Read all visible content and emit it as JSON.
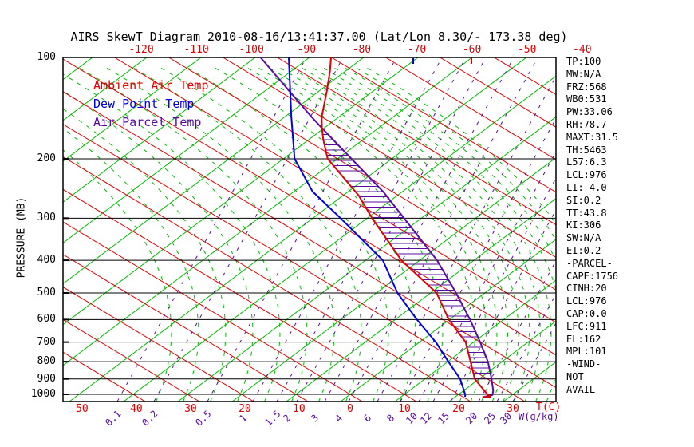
{
  "title": "AIRS SkewT Diagram 2010-08-16/13:41:37.00 (Lat/Lon 8.30/- 173.38 deg)",
  "colors": {
    "temperature": "#e00000",
    "dewpoint": "#0000e0",
    "parcel": "#5a0ca0",
    "isotherm": "#00bb00",
    "dry_adiabat": "#e00000",
    "moist_adiabat": "#00bb00",
    "mixing_ratio": "#5a0ca0",
    "axis": "#000000"
  },
  "legend": [
    {
      "label": "Ambient Air Temp",
      "color": "#e00000"
    },
    {
      "label": "Dew Point Temp",
      "color": "#0000e0"
    },
    {
      "label": "Air Parcel Temp",
      "color": "#5a0ca0"
    }
  ],
  "axes": {
    "pressure_title": "PRESSURE (MB)",
    "pressure_ticks": [
      100,
      200,
      300,
      400,
      500,
      600,
      700,
      800,
      900,
      1000
    ],
    "top_temperature_ticks": [
      -120,
      -110,
      -100,
      -90,
      -80,
      -70,
      -60,
      -50,
      -40
    ],
    "bottom_temperature_ticks": [
      -50,
      -40,
      -30,
      -20,
      -10,
      0,
      10,
      20,
      30
    ],
    "temperature_unit_label": "T(C)",
    "mixing_ratio_ticks": [
      "0.1",
      "0.2",
      "0.5",
      "1",
      "1.5",
      "2",
      "3",
      "4",
      "6",
      "8",
      "10",
      "12",
      "15",
      "20",
      "25",
      "30"
    ],
    "mixing_ratio_unit_label": "W(g/kg)"
  },
  "stats_panel": [
    "TP:100",
    "MW:N/A",
    "FRZ:568",
    "WB0:531",
    "PW:33.06",
    "RH:78.7",
    "MAXT:31.5",
    "TH:5463",
    "L57:6.3",
    "LCL:976",
    "LI:-4.0",
    "SI:0.2",
    "TT:43.8",
    "KI:306",
    "SW:N/A",
    "EI:0.2",
    "-PARCEL-",
    "CAPE:1756",
    "CINH:20",
    "LCL:976",
    "CAP:0.0",
    "LFC:911",
    "EL:162",
    "MPL:101",
    "-WIND-",
    "NOT",
    "AVAIL"
  ],
  "chart_data": {
    "type": "line",
    "subtype": "skewt_log_p",
    "pressure_range_mb": [
      100,
      1050
    ],
    "surface_temp_axis_range_c": [
      -50,
      33
    ],
    "series": [
      {
        "name": "Ambient Air Temp",
        "color": "#e00000",
        "points": [
          [
            1020,
            25.1
          ],
          [
            1017,
            26.5
          ],
          [
            1000,
            25.3
          ],
          [
            900,
            19.2
          ],
          [
            800,
            14.2
          ],
          [
            700,
            8.5
          ],
          [
            600,
            -0.1
          ],
          [
            500,
            -8.9
          ],
          [
            400,
            -23.4
          ],
          [
            300,
            -39.1
          ],
          [
            257,
            -47.1
          ],
          [
            200,
            -61.8
          ],
          [
            175,
            -67.4
          ],
          [
            162,
            -70.4
          ],
          [
            150,
            -73.2
          ],
          [
            126,
            -78.5
          ],
          [
            110,
            -82.8
          ],
          [
            100,
            -86.0
          ]
        ]
      },
      {
        "name": "Dew Point Temp",
        "color": "#0000e0",
        "points": [
          [
            1017,
            21.8
          ],
          [
            1000,
            21.2
          ],
          [
            900,
            16.5
          ],
          [
            800,
            10.1
          ],
          [
            700,
            3.0
          ],
          [
            600,
            -6.0
          ],
          [
            500,
            -16.1
          ],
          [
            400,
            -26.8
          ],
          [
            300,
            -44.9
          ],
          [
            250,
            -56.6
          ],
          [
            200,
            -67.9
          ],
          [
            150,
            -78.8
          ],
          [
            100,
            -93.8
          ]
        ]
      },
      {
        "name": "Air Parcel Temp",
        "color": "#5a0ca0",
        "points": [
          [
            1020,
            25.1
          ],
          [
            1005,
            26.4
          ],
          [
            976,
            25.5
          ],
          [
            900,
            22.3
          ],
          [
            800,
            17.4
          ],
          [
            700,
            11.2
          ],
          [
            600,
            3.8
          ],
          [
            500,
            -5.3
          ],
          [
            400,
            -16.8
          ],
          [
            300,
            -33.2
          ],
          [
            250,
            -43.6
          ],
          [
            200,
            -57.4
          ],
          [
            162,
            -70.4
          ],
          [
            150,
            -75.1
          ],
          [
            100,
            -99.0
          ]
        ]
      }
    ],
    "cape_hatch": {
      "between": [
        "Ambient Air Temp",
        "Air Parcel Temp"
      ],
      "pressure_top_mb": 162,
      "pressure_bottom_mb": 911
    },
    "isotherms_c": {
      "from": -160,
      "to": 40,
      "step": 10
    },
    "dry_adiabats_surface_c": {
      "from": -40,
      "to": 130,
      "step": 10
    },
    "moist_adiabats_surface_c": {
      "dense_from": 18,
      "dense_to": 40,
      "dense_step": 2,
      "sparse_from": -38,
      "sparse_to": 16,
      "sparse_step": 5
    },
    "mixing_ratio_label_x": {
      "0.1": 137,
      "0.2": 183,
      "0.5": 250,
      "1": 307,
      "1.5": 337,
      "2": 362,
      "3": 397,
      "4": 427,
      "6": 463,
      "8": 492,
      "10": 515,
      "12": 533,
      "15": 555,
      "20": 590,
      "25": 613,
      "30": 633
    },
    "top_edge_markers": [
      {
        "x": 518,
        "color": "#0000e0"
      },
      {
        "x": 591,
        "color": "#e00000"
      }
    ]
  }
}
